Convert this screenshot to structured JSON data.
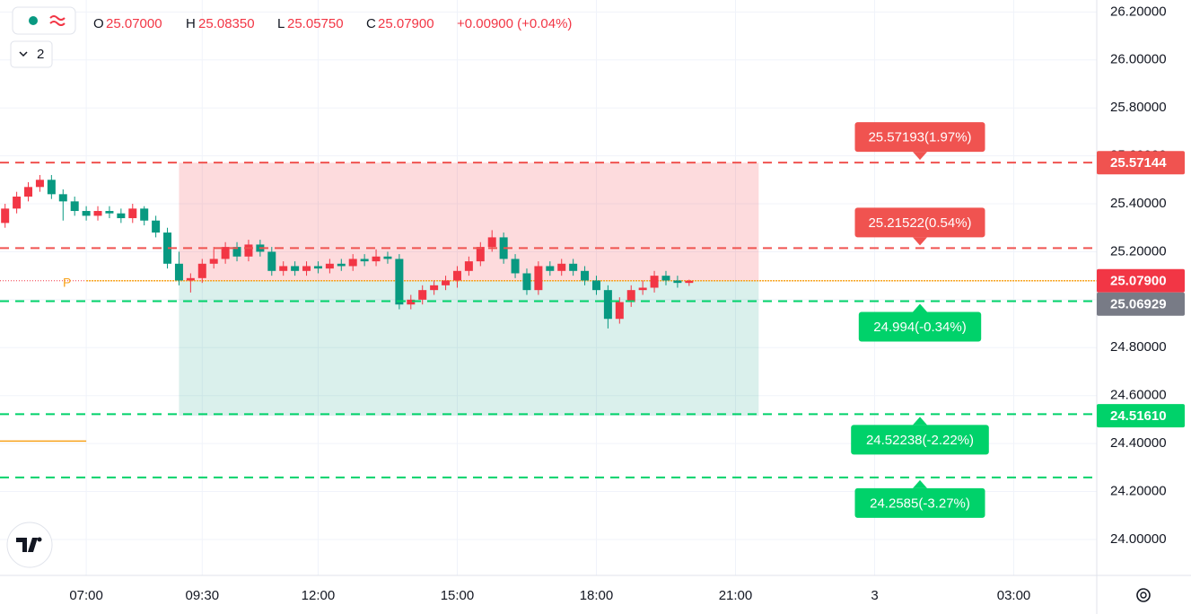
{
  "chart_data": {
    "type": "candlestick",
    "legend": {
      "open_label": "O",
      "open": "25.07000",
      "high_label": "H",
      "high": "25.08350",
      "low_label": "L",
      "low": "25.05750",
      "close_label": "C",
      "close": "25.07900",
      "change": "+0.00900 (+0.04%)"
    },
    "indicator_count": "2",
    "marker": "P",
    "up_color": "#f23645",
    "down_color": "#089981",
    "x": [
      5.25,
      5.5,
      5.75,
      6,
      6.25,
      6.5,
      6.75,
      7,
      7.25,
      7.5,
      7.75,
      8,
      8.25,
      8.5,
      8.75,
      9,
      9.25,
      9.5,
      9.75,
      10,
      10.25,
      10.5,
      10.75,
      11,
      11.25,
      11.5,
      11.75,
      12,
      12.25,
      12.5,
      12.75,
      13,
      13.25,
      13.5,
      13.75,
      14,
      14.25,
      14.5,
      14.75,
      15,
      15.25,
      15.5,
      15.75,
      16,
      16.25,
      16.5,
      16.75,
      17,
      17.25,
      17.5,
      17.75,
      18,
      18.25,
      18.5,
      18.75,
      19,
      19.25,
      19.5,
      19.75,
      20
    ],
    "open": [
      25.32,
      25.38,
      25.43,
      25.47,
      25.5,
      25.44,
      25.41,
      25.37,
      25.35,
      25.37,
      25.36,
      25.34,
      25.38,
      25.33,
      25.28,
      25.15,
      25.08,
      25.09,
      25.15,
      25.17,
      25.22,
      25.18,
      25.23,
      25.2,
      25.12,
      25.14,
      25.12,
      25.14,
      25.13,
      25.15,
      25.14,
      25.17,
      25.16,
      25.18,
      25.17,
      24.98,
      25.0,
      25.04,
      25.06,
      25.08,
      25.12,
      25.16,
      25.22,
      25.26,
      25.17,
      25.11,
      25.04,
      25.14,
      25.12,
      25.15,
      25.12,
      25.08,
      25.04,
      24.92,
      24.99,
      25.04,
      25.05,
      25.1,
      25.08,
      25.07
    ],
    "high": [
      25.4,
      25.45,
      25.49,
      25.52,
      25.52,
      25.46,
      25.43,
      25.39,
      25.39,
      25.39,
      25.38,
      25.4,
      25.39,
      25.35,
      25.3,
      25.2,
      25.11,
      25.17,
      25.22,
      25.24,
      25.24,
      25.25,
      25.25,
      25.22,
      25.16,
      25.16,
      25.16,
      25.16,
      25.17,
      25.17,
      25.19,
      25.19,
      25.21,
      25.2,
      25.19,
      25.02,
      25.06,
      25.08,
      25.1,
      25.14,
      25.18,
      25.24,
      25.29,
      25.28,
      25.19,
      25.13,
      25.16,
      25.16,
      25.17,
      25.17,
      25.14,
      25.1,
      25.06,
      25.01,
      25.06,
      25.08,
      25.12,
      25.12,
      25.1,
      25.0835
    ],
    "low": [
      25.3,
      25.36,
      25.41,
      25.45,
      25.42,
      25.33,
      25.35,
      25.33,
      25.33,
      25.34,
      25.32,
      25.32,
      25.31,
      25.26,
      25.13,
      25.06,
      25.03,
      25.07,
      25.13,
      25.15,
      25.16,
      25.16,
      25.18,
      25.1,
      25.1,
      25.1,
      25.1,
      25.11,
      25.11,
      25.12,
      25.12,
      25.14,
      25.14,
      25.15,
      24.96,
      24.96,
      24.98,
      25.02,
      25.04,
      25.05,
      25.1,
      25.14,
      25.2,
      25.15,
      25.09,
      25.02,
      25.02,
      25.1,
      25.1,
      25.1,
      25.06,
      25.02,
      24.88,
      24.9,
      24.97,
      25.02,
      25.03,
      25.06,
      25.05,
      25.0575
    ],
    "close": [
      25.38,
      25.43,
      25.47,
      25.5,
      25.44,
      25.41,
      25.37,
      25.35,
      25.37,
      25.36,
      25.34,
      25.38,
      25.33,
      25.28,
      25.15,
      25.08,
      25.09,
      25.15,
      25.17,
      25.22,
      25.18,
      25.23,
      25.2,
      25.12,
      25.14,
      25.12,
      25.14,
      25.13,
      25.15,
      25.14,
      25.17,
      25.16,
      25.18,
      25.17,
      24.98,
      25.0,
      25.04,
      25.06,
      25.08,
      25.12,
      25.16,
      25.22,
      25.26,
      25.17,
      25.11,
      25.04,
      25.14,
      25.12,
      25.15,
      25.12,
      25.08,
      25.04,
      24.92,
      24.99,
      25.04,
      25.05,
      25.1,
      25.08,
      25.07,
      25.079
    ],
    "position": {
      "x_start": 9,
      "x_end": 21.5,
      "entry": 25.079,
      "target": 25.57144,
      "stop": 24.5161
    },
    "indicator_line": {
      "value": 24.41,
      "x_end": 7
    },
    "price_lines": [
      {
        "value": 25.57193,
        "label": "25.57193(1.97%)",
        "color": "#f05350",
        "side": "above"
      },
      {
        "value": 25.21522,
        "label": "25.21522(0.54%)",
        "color": "#f05350",
        "side": "above"
      },
      {
        "value": 24.994,
        "label": "24.994(-0.34%)",
        "color": "#00d26a",
        "side": "below"
      },
      {
        "value": 24.52238,
        "label": "24.52238(-2.22%)",
        "color": "#00d26a",
        "side": "below"
      },
      {
        "value": 24.2585,
        "label": "24.2585(-3.27%)",
        "color": "#00d26a",
        "side": "below"
      }
    ],
    "axis_badges": [
      {
        "value": 25.57144,
        "label": "25.57144",
        "color": "#f05350"
      },
      {
        "value": 25.079,
        "label": "25.07900",
        "color": "#f23645"
      },
      {
        "value": 25.06929,
        "label": "25.06929",
        "color": "#787b86"
      },
      {
        "value": 24.5161,
        "label": "24.51610",
        "color": "#00d26a"
      }
    ],
    "xlim": [
      5.14,
      28.79
    ],
    "ylim": [
      23.85,
      26.25
    ],
    "xticks": [
      {
        "value": 7,
        "label": "07:00"
      },
      {
        "value": 9.5,
        "label": "09:30"
      },
      {
        "value": 12,
        "label": "12:00"
      },
      {
        "value": 15,
        "label": "15:00"
      },
      {
        "value": 18,
        "label": "18:00"
      },
      {
        "value": 21,
        "label": "21:00"
      },
      {
        "value": 24,
        "label": "3"
      },
      {
        "value": 27,
        "label": "03:00"
      }
    ],
    "yticks": [
      {
        "value": 26.2,
        "label": "26.20000"
      },
      {
        "value": 26,
        "label": "26.00000"
      },
      {
        "value": 25.8,
        "label": "25.80000"
      },
      {
        "value": 25.6,
        "label": "25.60000"
      },
      {
        "value": 25.4,
        "label": "25.40000"
      },
      {
        "value": 25.2,
        "label": "25.20000"
      },
      {
        "value": 25,
        "label": "25.00000"
      },
      {
        "value": 24.8,
        "label": "24.80000"
      },
      {
        "value": 24.6,
        "label": "24.60000"
      },
      {
        "value": 24.4,
        "label": "24.40000"
      },
      {
        "value": 24.2,
        "label": "24.20000"
      },
      {
        "value": 24,
        "label": "24.00000"
      }
    ],
    "grid": true
  }
}
